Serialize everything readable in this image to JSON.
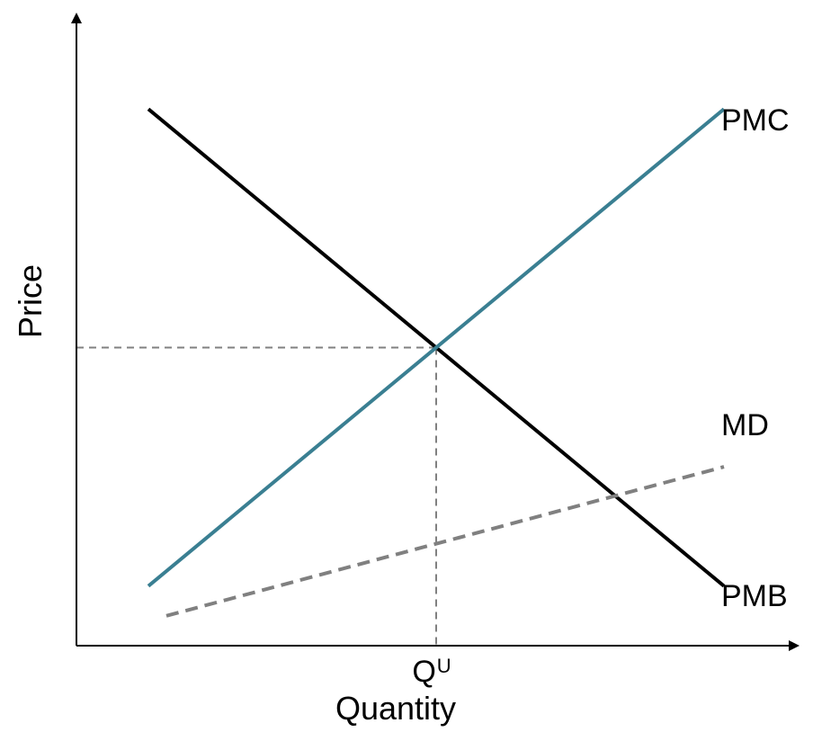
{
  "chart_data": {
    "type": "line",
    "xlabel": "Quantity",
    "ylabel": "Price",
    "x_ticks": [
      {
        "x": 5,
        "label": "Q",
        "superscript": "U"
      }
    ],
    "xlim": [
      0,
      10
    ],
    "ylim": [
      0,
      10
    ],
    "grid": false,
    "legend": "none",
    "series": [
      {
        "name": "PMB",
        "color": "#000000",
        "style": "solid",
        "points": [
          [
            1,
            9
          ],
          [
            9,
            1
          ]
        ]
      },
      {
        "name": "PMC",
        "color": "#3a7f92",
        "style": "solid",
        "points": [
          [
            1,
            1
          ],
          [
            9,
            9
          ]
        ]
      },
      {
        "name": "MD",
        "color": "#808080",
        "style": "dashed",
        "points": [
          [
            1.25,
            0.5
          ],
          [
            9,
            3
          ]
        ]
      }
    ],
    "guides": {
      "equilibrium": [
        5,
        5
      ],
      "color": "#808080",
      "style": "dashed"
    }
  }
}
